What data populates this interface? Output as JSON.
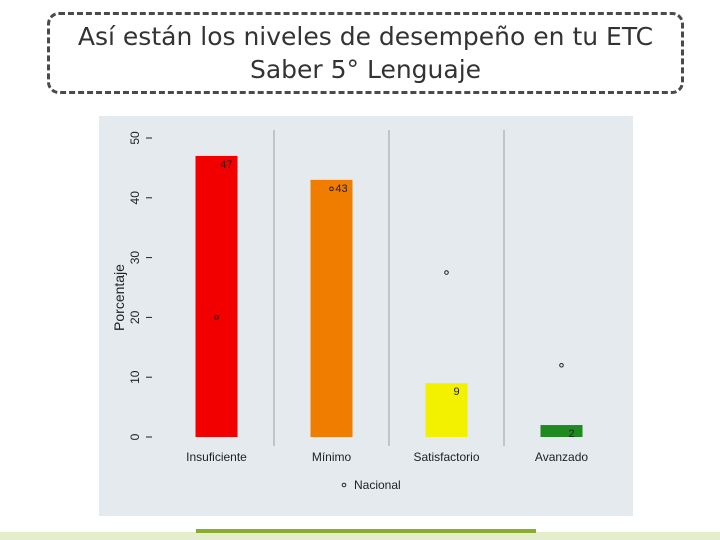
{
  "slide": {
    "title_line1": "Así están los niveles de desempeño en tu ETC",
    "title_line2": "Saber 5° Lenguaje"
  },
  "colors": {
    "panel_bg": "#e4eaee",
    "gridline": "#9aa0a4",
    "Insuficiente": "#f20000",
    "Mínimo": "#f17d00",
    "Satisfactorio": "#f3f000",
    "Avanzado": "#1f8a1f"
  },
  "chart_data": {
    "type": "bar",
    "title": "",
    "xlabel": "",
    "ylabel": "Porcentaje",
    "ylim": [
      0,
      50
    ],
    "yticks": [
      0,
      10,
      20,
      30,
      40,
      50
    ],
    "categories": [
      "Insuficiente",
      "Mínimo",
      "Satisfactorio",
      "Avanzado"
    ],
    "series": [
      {
        "values": [
          47,
          43,
          9,
          2
        ],
        "data_labels": [
          "47",
          "43",
          "9",
          "2"
        ]
      },
      {
        "name": "Nacional",
        "type": "scatter",
        "values": [
          20,
          41.5,
          27.5,
          12
        ]
      }
    ],
    "legend_position": "bottom",
    "grid": true
  }
}
